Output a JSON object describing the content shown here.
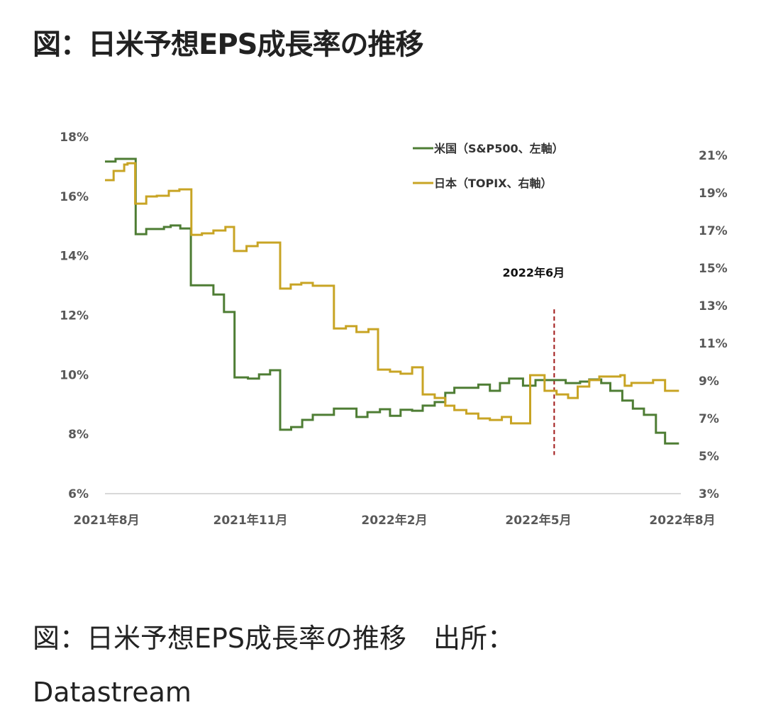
{
  "header": {
    "title": "図：日米予想EPS成長率の推移"
  },
  "caption": {
    "line1": "図：日米予想EPS成長率の推移　出所：",
    "line2": "Datastream"
  },
  "colors": {
    "us": "#4e7d34",
    "japan": "#c8a424",
    "marker": "#a01818",
    "axis": "#d9d9d9",
    "tick": "#595959"
  },
  "chart_data": {
    "type": "line",
    "step": true,
    "x_unit": "months since 2021年8月",
    "xlim": [
      0,
      12
    ],
    "x_ticks": [
      {
        "x": 0,
        "label": "2021年8月"
      },
      {
        "x": 3,
        "label": "2021年11月"
      },
      {
        "x": 6,
        "label": "2022年2月"
      },
      {
        "x": 9,
        "label": "2022年5月"
      },
      {
        "x": 12,
        "label": "2022年8月"
      }
    ],
    "y_left": {
      "lim": [
        6,
        18
      ],
      "ticks": [
        "18%",
        "16%",
        "14%",
        "12%",
        "10%",
        "8%",
        "6%"
      ],
      "tick_values": [
        18,
        16,
        14,
        12,
        10,
        8,
        6
      ]
    },
    "y_right": {
      "lim": [
        3,
        21
      ],
      "ticks": [
        "21%",
        "19%",
        "17%",
        "15%",
        "13%",
        "11%",
        "9%",
        "7%",
        "5%",
        "3%"
      ],
      "tick_values": [
        21,
        19,
        17,
        15,
        13,
        11,
        9,
        7,
        5,
        3
      ]
    },
    "legend_position": "top-right",
    "grid": false,
    "annotation": {
      "label": "2022年6月",
      "x": 9.36,
      "y_range_left": [
        7.3,
        12.2
      ]
    },
    "series": [
      {
        "name": "米国（S&P500、左軸）",
        "axis": "left",
        "color_key": "us",
        "points": [
          [
            0,
            17.17
          ],
          [
            0.22,
            17.26
          ],
          [
            0.64,
            14.73
          ],
          [
            0.86,
            14.9
          ],
          [
            1.23,
            14.97
          ],
          [
            1.37,
            15.02
          ],
          [
            1.57,
            14.92
          ],
          [
            1.79,
            13.01
          ],
          [
            2.26,
            12.7
          ],
          [
            2.48,
            12.11
          ],
          [
            2.7,
            9.91
          ],
          [
            2.98,
            9.87
          ],
          [
            3.21,
            10.01
          ],
          [
            3.44,
            10.15
          ],
          [
            3.65,
            8.15
          ],
          [
            3.88,
            8.24
          ],
          [
            4.11,
            8.48
          ],
          [
            4.33,
            8.65
          ],
          [
            4.77,
            8.86
          ],
          [
            5.24,
            8.58
          ],
          [
            5.47,
            8.74
          ],
          [
            5.73,
            8.84
          ],
          [
            5.94,
            8.62
          ],
          [
            6.16,
            8.82
          ],
          [
            6.4,
            8.79
          ],
          [
            6.62,
            8.96
          ],
          [
            6.87,
            9.08
          ],
          [
            7.09,
            9.39
          ],
          [
            7.28,
            9.56
          ],
          [
            7.78,
            9.67
          ],
          [
            8.02,
            9.46
          ],
          [
            8.23,
            9.72
          ],
          [
            8.42,
            9.87
          ],
          [
            8.71,
            9.63
          ],
          [
            8.97,
            9.82
          ],
          [
            9.6,
            9.72
          ],
          [
            9.9,
            9.77
          ],
          [
            10.09,
            9.84
          ],
          [
            10.34,
            9.72
          ],
          [
            10.53,
            9.46
          ],
          [
            10.78,
            9.13
          ],
          [
            11.0,
            8.86
          ],
          [
            11.23,
            8.65
          ],
          [
            11.48,
            8.05
          ],
          [
            11.67,
            7.69
          ],
          [
            11.96,
            7.69
          ]
        ]
      },
      {
        "name": "日本（TOPIX、右軸）",
        "axis": "right",
        "color_key": "japan",
        "points": [
          [
            0,
            19.68
          ],
          [
            0.18,
            20.17
          ],
          [
            0.4,
            20.51
          ],
          [
            0.47,
            20.58
          ],
          [
            0.63,
            18.43
          ],
          [
            0.86,
            18.81
          ],
          [
            1.08,
            18.85
          ],
          [
            1.33,
            19.11
          ],
          [
            1.55,
            19.19
          ],
          [
            1.8,
            16.77
          ],
          [
            2.02,
            16.85
          ],
          [
            2.26,
            17.0
          ],
          [
            2.51,
            17.19
          ],
          [
            2.69,
            15.91
          ],
          [
            2.95,
            16.17
          ],
          [
            3.18,
            16.36
          ],
          [
            3.65,
            13.91
          ],
          [
            3.87,
            14.13
          ],
          [
            4.09,
            14.21
          ],
          [
            4.33,
            14.06
          ],
          [
            4.77,
            11.79
          ],
          [
            5.02,
            11.91
          ],
          [
            5.24,
            11.6
          ],
          [
            5.49,
            11.75
          ],
          [
            5.69,
            9.6
          ],
          [
            5.94,
            9.49
          ],
          [
            6.16,
            9.38
          ],
          [
            6.4,
            9.72
          ],
          [
            6.62,
            8.28
          ],
          [
            6.87,
            8.09
          ],
          [
            7.09,
            7.68
          ],
          [
            7.28,
            7.45
          ],
          [
            7.53,
            7.26
          ],
          [
            7.78,
            7.0
          ],
          [
            8.02,
            6.92
          ],
          [
            8.27,
            7.08
          ],
          [
            8.46,
            6.74
          ],
          [
            8.86,
            9.3
          ],
          [
            9.16,
            8.47
          ],
          [
            9.41,
            8.28
          ],
          [
            9.65,
            8.09
          ],
          [
            9.85,
            8.7
          ],
          [
            10.09,
            9.04
          ],
          [
            10.3,
            9.23
          ],
          [
            10.74,
            9.3
          ],
          [
            10.83,
            8.74
          ],
          [
            10.97,
            8.89
          ],
          [
            11.42,
            9.04
          ],
          [
            11.67,
            8.47
          ],
          [
            11.96,
            8.47
          ]
        ]
      }
    ]
  }
}
